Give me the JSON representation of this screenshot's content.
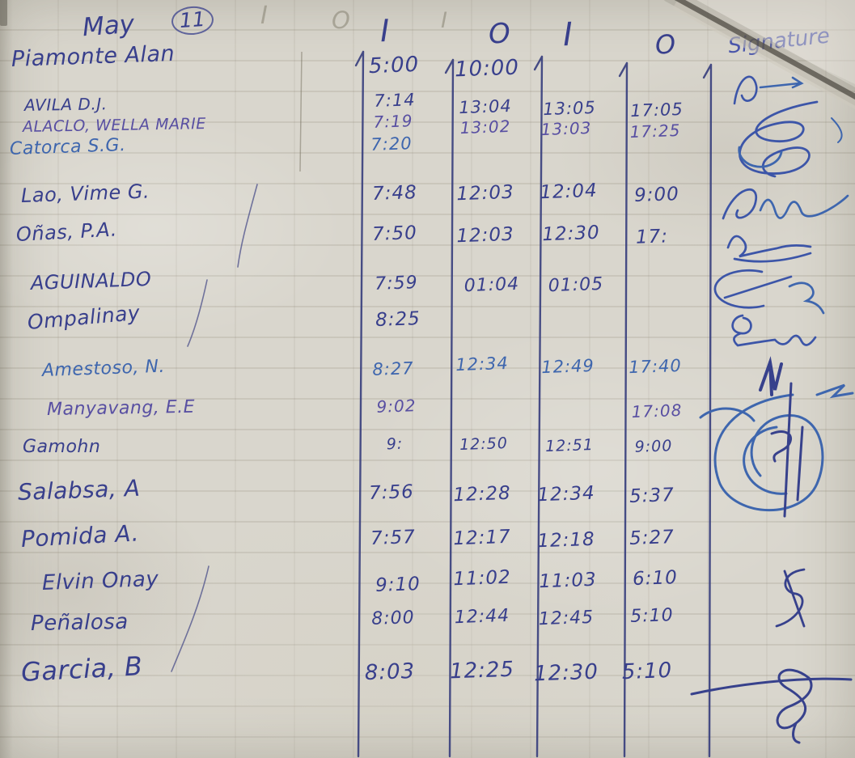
{
  "colors": {
    "paper": "#d9d6cd",
    "ink_navy": "#383f8c",
    "ink_blue": "#3e66ae",
    "ink_purple": "#584fa2",
    "pencil": "#8f897a",
    "crease_shadow": "#56524a"
  },
  "header": {
    "date_month": "May",
    "date_day": "11",
    "columns": [
      "I",
      "O",
      "I",
      "O",
      "Signature"
    ],
    "ghost_marks": [
      "I",
      "O",
      "I"
    ]
  },
  "rows": [
    {
      "name": "Piamonte Alan",
      "in1": "5:00",
      "out1": "10:00",
      "in2": "",
      "out2": "",
      "signature_present": true
    },
    {
      "name": "AVILA D.J.",
      "in1": "7:14",
      "out1": "13:04",
      "in2": "13:05",
      "out2": "17:05",
      "signature_present": true
    },
    {
      "name": "ALACLO, WELLA MARIE",
      "in1": "7:19",
      "out1": "13:02",
      "in2": "13:03",
      "out2": "17:25",
      "signature_present": true
    },
    {
      "name": "Catorca S.G.",
      "in1": "7:20",
      "out1": "",
      "in2": "",
      "out2": "",
      "signature_present": true
    },
    {
      "name": "Lao, Vime G.",
      "in1": "7:48",
      "out1": "12:03",
      "in2": "12:04",
      "out2": "9:00",
      "signature_present": true
    },
    {
      "name": "Oñas, P.A.",
      "in1": "7:50",
      "out1": "12:03",
      "in2": "12:30",
      "out2": "17:",
      "signature_present": true
    },
    {
      "name": "AGUINALDO",
      "in1": "7:59",
      "out1": "01:04",
      "in2": "01:05",
      "out2": "",
      "signature_present": true
    },
    {
      "name": "Ompalinay",
      "in1": "8:25",
      "out1": "",
      "in2": "",
      "out2": "",
      "signature_present": true
    },
    {
      "name": "Amestoso, N.",
      "in1": "8:27",
      "out1": "12:34",
      "in2": "12:49",
      "out2": "17:40",
      "signature_present": true
    },
    {
      "name": "Manyavang, E.E",
      "in1": "9:02",
      "out1": "",
      "in2": "",
      "out2": "17:08",
      "signature_present": true
    },
    {
      "name": "Gamohn",
      "in1": "9:",
      "out1": "12:50",
      "in2": "12:51",
      "out2": "9:00",
      "signature_present": true
    },
    {
      "name": "Salabsa, A",
      "in1": "7:56",
      "out1": "12:28",
      "in2": "12:34",
      "out2": "5:37",
      "signature_present": false
    },
    {
      "name": "Pomida A.",
      "in1": "7:57",
      "out1": "12:17",
      "in2": "12:18",
      "out2": "5:27",
      "signature_present": false
    },
    {
      "name": "Elvin Onay",
      "in1": "9:10",
      "out1": "11:02",
      "in2": "11:03",
      "out2": "6:10",
      "signature_present": true
    },
    {
      "name": "Peñalosa",
      "in1": "8:00",
      "out1": "12:44",
      "in2": "12:45",
      "out2": "5:10",
      "signature_present": false
    },
    {
      "name": "Garcia, B",
      "in1": "8:03",
      "out1": "12:25",
      "in2": "12:30",
      "out2": "5:10",
      "signature_present": true
    }
  ]
}
